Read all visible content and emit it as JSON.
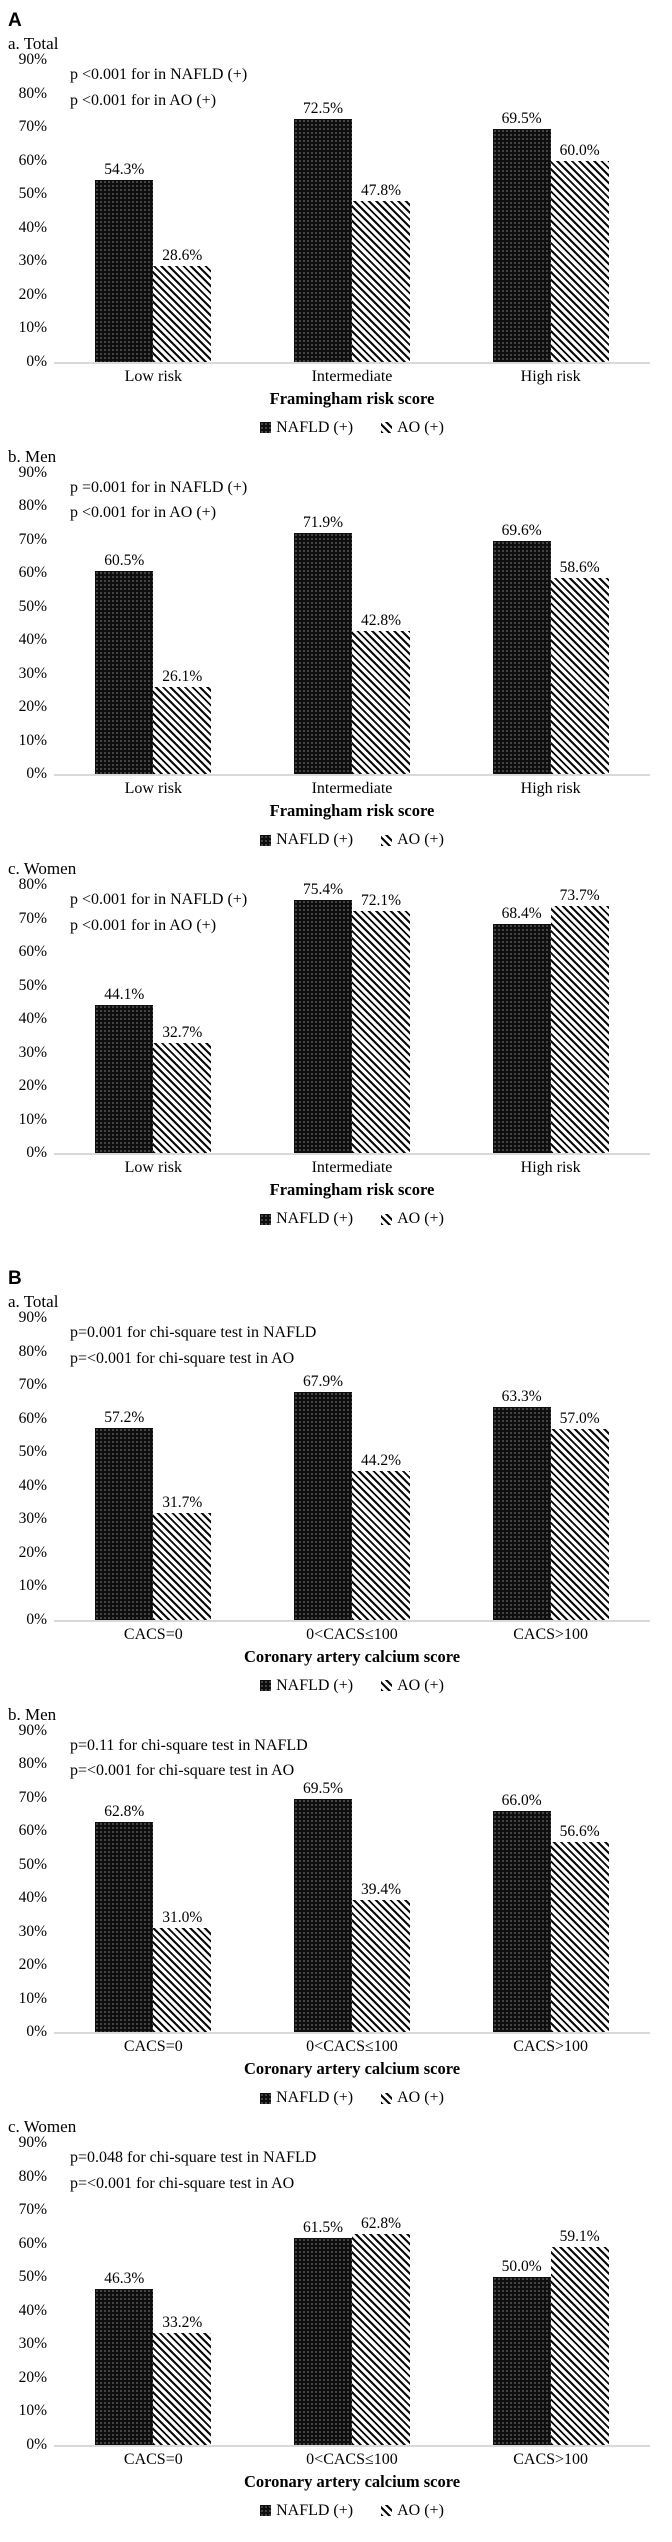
{
  "figure": {
    "panel_a_label": "A",
    "panel_b_label": "B"
  },
  "legend": {
    "nafld_label": "NAFLD (+)",
    "ao_label": "AO (+)"
  },
  "colors": {
    "solid_bar": "#0e0e0e",
    "hatch_stroke": "#0a0a0a",
    "baseline": "#d9d9d9"
  },
  "chart_data": [
    {
      "type": "bar",
      "panel": "A",
      "subtitle": "a. Total",
      "annotations": [
        "p <0.001 for in NAFLD (+)",
        "p <0.001 for in AO (+)"
      ],
      "categories": [
        "Low risk",
        "Intermediate",
        "High risk"
      ],
      "series": [
        {
          "name": "NAFLD (+)",
          "pattern": "solid",
          "values": [
            54.3,
            72.5,
            69.5
          ]
        },
        {
          "name": "AO (+)",
          "pattern": "hatch",
          "values": [
            28.6,
            47.8,
            60.0
          ]
        }
      ],
      "xlabel": "Framingham risk score",
      "ylim": [
        0,
        90
      ],
      "ytick_step": 10,
      "ytick_suffix": "%",
      "grid": false,
      "legend_position": "bottom-center"
    },
    {
      "type": "bar",
      "panel": "A",
      "subtitle": "b. Men",
      "annotations": [
        "p =0.001 for in NAFLD (+)",
        "p <0.001 for in AO (+)"
      ],
      "categories": [
        "Low risk",
        "Intermediate",
        "High risk"
      ],
      "series": [
        {
          "name": "NAFLD (+)",
          "pattern": "solid",
          "values": [
            60.5,
            71.9,
            69.6
          ]
        },
        {
          "name": "AO (+)",
          "pattern": "hatch",
          "values": [
            26.1,
            42.8,
            58.6
          ]
        }
      ],
      "xlabel": "Framingham risk score",
      "ylim": [
        0,
        90
      ],
      "ytick_step": 10,
      "ytick_suffix": "%",
      "grid": false,
      "legend_position": "bottom-center"
    },
    {
      "type": "bar",
      "panel": "A",
      "subtitle": "c. Women",
      "annotations": [
        "p <0.001 for in NAFLD (+)",
        "p <0.001 for in AO (+)"
      ],
      "categories": [
        "Low risk",
        "Intermediate",
        "High risk"
      ],
      "series": [
        {
          "name": "NAFLD (+)",
          "pattern": "solid",
          "values": [
            44.1,
            75.4,
            68.4
          ]
        },
        {
          "name": "AO (+)",
          "pattern": "hatch",
          "values": [
            32.7,
            72.1,
            73.7
          ]
        }
      ],
      "xlabel": "Framingham risk score",
      "ylim": [
        0,
        80
      ],
      "ytick_step": 10,
      "ytick_suffix": "%",
      "grid": false,
      "legend_position": "bottom-center"
    },
    {
      "type": "bar",
      "panel": "B",
      "subtitle": "a. Total",
      "annotations": [
        "p=0.001 for chi-square test in NAFLD",
        "p=<0.001 for chi-square test in AO"
      ],
      "categories": [
        "CACS=0",
        "0<CACS≤100",
        "CACS>100"
      ],
      "series": [
        {
          "name": "NAFLD (+)",
          "pattern": "solid",
          "values": [
            57.2,
            67.9,
            63.3
          ]
        },
        {
          "name": "AO (+)",
          "pattern": "hatch",
          "values": [
            31.7,
            44.2,
            57.0
          ]
        }
      ],
      "xlabel": "Coronary artery calcium score",
      "ylim": [
        0,
        90
      ],
      "ytick_step": 10,
      "ytick_suffix": "%",
      "grid": false,
      "legend_position": "bottom-center"
    },
    {
      "type": "bar",
      "panel": "B",
      "subtitle": "b. Men",
      "annotations": [
        "p=0.11 for chi-square test in NAFLD",
        "p=<0.001 for chi-square test in AO"
      ],
      "categories": [
        "CACS=0",
        "0<CACS≤100",
        "CACS>100"
      ],
      "series": [
        {
          "name": "NAFLD (+)",
          "pattern": "solid",
          "values": [
            62.8,
            69.5,
            66.0
          ]
        },
        {
          "name": "AO (+)",
          "pattern": "hatch",
          "values": [
            31.0,
            39.4,
            56.6
          ]
        }
      ],
      "xlabel": "Coronary artery calcium score",
      "ylim": [
        0,
        90
      ],
      "ytick_step": 10,
      "ytick_suffix": "%",
      "grid": false,
      "legend_position": "bottom-center"
    },
    {
      "type": "bar",
      "panel": "B",
      "subtitle": "c. Women",
      "annotations": [
        "p=0.048 for chi-square test in NAFLD",
        "p=<0.001 for chi-square test in AO"
      ],
      "categories": [
        "CACS=0",
        "0<CACS≤100",
        "CACS>100"
      ],
      "series": [
        {
          "name": "NAFLD (+)",
          "pattern": "solid",
          "values": [
            46.3,
            61.5,
            50.0
          ]
        },
        {
          "name": "AO (+)",
          "pattern": "hatch",
          "values": [
            33.2,
            62.8,
            59.1
          ]
        }
      ],
      "xlabel": "Coronary artery calcium score",
      "ylim": [
        0,
        90
      ],
      "ytick_step": 10,
      "ytick_suffix": "%",
      "grid": false,
      "legend_position": "bottom-center"
    }
  ]
}
